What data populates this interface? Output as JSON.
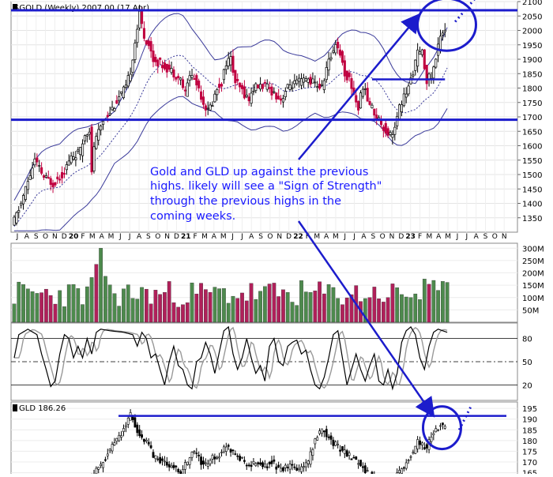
{
  "chart_data": [
    {
      "type": "candlestick",
      "panel": "price",
      "title": "$GOLD (Weekly) 2007.00 (17 Apr)",
      "x_axis_labels": [
        {
          "text": "J",
          "year": "2019"
        },
        {
          "text": "A",
          "year": "2019"
        },
        {
          "text": "S",
          "year": "2019"
        },
        {
          "text": "O",
          "year": "2019"
        },
        {
          "text": "N",
          "year": "2019"
        },
        {
          "text": "D",
          "year": "2019"
        },
        {
          "text": "20",
          "year": "2020"
        },
        {
          "text": "F",
          "year": "2020"
        },
        {
          "text": "M",
          "year": "2020"
        },
        {
          "text": "A",
          "year": "2020"
        },
        {
          "text": "M",
          "year": "2020"
        },
        {
          "text": "J",
          "year": "2020"
        },
        {
          "text": "J",
          "year": "2020"
        },
        {
          "text": "A",
          "year": "2020"
        },
        {
          "text": "S",
          "year": "2020"
        },
        {
          "text": "O",
          "year": "2020"
        },
        {
          "text": "N",
          "year": "2020"
        },
        {
          "text": "D",
          "year": "2020"
        },
        {
          "text": "21",
          "year": "2021"
        },
        {
          "text": "F",
          "year": "2021"
        },
        {
          "text": "M",
          "year": "2021"
        },
        {
          "text": "A",
          "year": "2021"
        },
        {
          "text": "M",
          "year": "2021"
        },
        {
          "text": "J",
          "year": "2021"
        },
        {
          "text": "J",
          "year": "2021"
        },
        {
          "text": "A",
          "year": "2021"
        },
        {
          "text": "S",
          "year": "2021"
        },
        {
          "text": "O",
          "year": "2021"
        },
        {
          "text": "N",
          "year": "2021"
        },
        {
          "text": "D",
          "year": "2021"
        },
        {
          "text": "22",
          "year": "2022"
        },
        {
          "text": "F",
          "year": "2022"
        },
        {
          "text": "M",
          "year": "2022"
        },
        {
          "text": "A",
          "year": "2022"
        },
        {
          "text": "M",
          "year": "2022"
        },
        {
          "text": "J",
          "year": "2022"
        },
        {
          "text": "J",
          "year": "2022"
        },
        {
          "text": "A",
          "year": "2022"
        },
        {
          "text": "S",
          "year": "2022"
        },
        {
          "text": "O",
          "year": "2022"
        },
        {
          "text": "N",
          "year": "2022"
        },
        {
          "text": "D",
          "year": "2022"
        },
        {
          "text": "23",
          "year": "2023"
        },
        {
          "text": "F",
          "year": "2023"
        },
        {
          "text": "M",
          "year": "2023"
        },
        {
          "text": "A",
          "year": "2023"
        },
        {
          "text": "M",
          "year": "2023"
        },
        {
          "text": "J",
          "year": "2023"
        },
        {
          "text": "J",
          "year": "2023"
        },
        {
          "text": "A",
          "year": "2023"
        },
        {
          "text": "S",
          "year": "2023"
        },
        {
          "text": "O",
          "year": "2023"
        },
        {
          "text": "N",
          "year": "2023"
        }
      ],
      "y_ticks": [
        1350,
        1400,
        1450,
        1500,
        1550,
        1600,
        1650,
        1700,
        1750,
        1800,
        1850,
        1900,
        1950,
        2000,
        2050,
        2100
      ],
      "ylim": [
        1300,
        2100
      ],
      "price_path": [
        [
          0,
          1320
        ],
        [
          2,
          1400
        ],
        [
          4,
          1500
        ],
        [
          5,
          1550
        ],
        [
          6,
          1520
        ],
        [
          7,
          1490
        ],
        [
          9,
          1470
        ],
        [
          11,
          1500
        ],
        [
          13,
          1560
        ],
        [
          15,
          1580
        ],
        [
          16,
          1640
        ],
        [
          17,
          1660
        ],
        [
          17.5,
          1500
        ],
        [
          18,
          1600
        ],
        [
          20,
          1690
        ],
        [
          22,
          1730
        ],
        [
          24,
          1780
        ],
        [
          25,
          1800
        ],
        [
          26,
          1860
        ],
        [
          27,
          1960
        ],
        [
          28,
          2060
        ],
        [
          29,
          1980
        ],
        [
          30,
          1950
        ],
        [
          31,
          1900
        ],
        [
          33,
          1880
        ],
        [
          35,
          1860
        ],
        [
          37,
          1830
        ],
        [
          38,
          1780
        ],
        [
          39,
          1850
        ],
        [
          40,
          1830
        ],
        [
          41,
          1800
        ],
        [
          42,
          1750
        ],
        [
          43,
          1720
        ],
        [
          44,
          1750
        ],
        [
          45,
          1800
        ],
        [
          46,
          1820
        ],
        [
          47,
          1890
        ],
        [
          48,
          1900
        ],
        [
          49,
          1820
        ],
        [
          50,
          1800
        ],
        [
          51,
          1780
        ],
        [
          52,
          1760
        ],
        [
          53,
          1800
        ],
        [
          55,
          1810
        ],
        [
          57,
          1790
        ],
        [
          59,
          1760
        ],
        [
          60,
          1790
        ],
        [
          61,
          1810
        ],
        [
          63,
          1820
        ],
        [
          65,
          1830
        ],
        [
          67,
          1810
        ],
        [
          68,
          1800
        ],
        [
          69,
          1870
        ],
        [
          70,
          1910
        ],
        [
          71,
          1960
        ],
        [
          72,
          1920
        ],
        [
          73,
          1850
        ],
        [
          74,
          1830
        ],
        [
          75,
          1780
        ],
        [
          76,
          1730
        ],
        [
          77,
          1810
        ],
        [
          78,
          1760
        ],
        [
          79,
          1730
        ],
        [
          80,
          1700
        ],
        [
          81,
          1680
        ],
        [
          82,
          1650
        ],
        [
          83,
          1640
        ],
        [
          84,
          1660
        ],
        [
          85,
          1730
        ],
        [
          86,
          1770
        ],
        [
          87,
          1800
        ],
        [
          88,
          1860
        ],
        [
          89,
          1920
        ],
        [
          90,
          1920
        ],
        [
          91,
          1830
        ],
        [
          92,
          1840
        ],
        [
          93,
          1900
        ],
        [
          94,
          1990
        ],
        [
          95,
          2007
        ]
      ],
      "horizontal_lines": [
        2070,
        1690
      ],
      "short_line": {
        "value": 1830
      },
      "annotation": "Gold and GLD up against the previous highs.  likely will see a \"Sign of Strength\" through the previous highs in the coming weeks."
    },
    {
      "type": "bar",
      "panel": "volume",
      "y_ticks": [
        "50M",
        "100M",
        "150M",
        "200M",
        "250M",
        "300M"
      ],
      "ylim": [
        0,
        320
      ],
      "unit": "M"
    },
    {
      "type": "line",
      "panel": "stochastic",
      "y_ticks": [
        20,
        50,
        80
      ],
      "ylim": [
        0,
        100
      ],
      "k_path": [
        [
          0,
          55
        ],
        [
          1,
          85
        ],
        [
          3,
          92
        ],
        [
          5,
          85
        ],
        [
          6,
          60
        ],
        [
          7,
          40
        ],
        [
          8,
          18
        ],
        [
          9,
          25
        ],
        [
          10,
          60
        ],
        [
          11,
          85
        ],
        [
          12,
          80
        ],
        [
          13,
          55
        ],
        [
          14,
          70
        ],
        [
          15,
          55
        ],
        [
          16,
          80
        ],
        [
          17,
          60
        ],
        [
          18,
          88
        ],
        [
          19,
          92
        ],
        [
          21,
          90
        ],
        [
          24,
          88
        ],
        [
          26,
          85
        ],
        [
          27,
          70
        ],
        [
          28,
          88
        ],
        [
          29,
          80
        ],
        [
          30,
          55
        ],
        [
          31,
          60
        ],
        [
          32,
          40
        ],
        [
          33,
          20
        ],
        [
          34,
          50
        ],
        [
          35,
          70
        ],
        [
          36,
          45
        ],
        [
          37,
          40
        ],
        [
          38,
          20
        ],
        [
          39,
          15
        ],
        [
          40,
          50
        ],
        [
          41,
          55
        ],
        [
          42,
          75
        ],
        [
          43,
          60
        ],
        [
          44,
          35
        ],
        [
          46,
          90
        ],
        [
          47,
          95
        ],
        [
          48,
          60
        ],
        [
          49,
          40
        ],
        [
          50,
          55
        ],
        [
          51,
          80
        ],
        [
          52,
          55
        ],
        [
          53,
          35
        ],
        [
          54,
          45
        ],
        [
          55,
          25
        ],
        [
          56,
          70
        ],
        [
          57,
          80
        ],
        [
          58,
          50
        ],
        [
          59,
          45
        ],
        [
          60,
          70
        ],
        [
          61,
          75
        ],
        [
          62,
          78
        ],
        [
          63,
          60
        ],
        [
          64,
          65
        ],
        [
          65,
          40
        ],
        [
          66,
          20
        ],
        [
          67,
          15
        ],
        [
          68,
          30
        ],
        [
          69,
          55
        ],
        [
          70,
          85
        ],
        [
          71,
          90
        ],
        [
          72,
          55
        ],
        [
          73,
          20
        ],
        [
          74,
          40
        ],
        [
          75,
          60
        ],
        [
          76,
          40
        ],
        [
          77,
          25
        ],
        [
          78,
          45
        ],
        [
          79,
          60
        ],
        [
          80,
          25
        ],
        [
          81,
          20
        ],
        [
          82,
          40
        ],
        [
          83,
          15
        ],
        [
          84,
          35
        ],
        [
          85,
          75
        ],
        [
          86,
          90
        ],
        [
          87,
          95
        ],
        [
          88,
          85
        ],
        [
          89,
          55
        ],
        [
          90,
          40
        ],
        [
          91,
          70
        ],
        [
          92,
          88
        ],
        [
          93,
          92
        ],
        [
          94,
          90
        ],
        [
          95,
          88
        ]
      ]
    },
    {
      "type": "candlestick",
      "panel": "gld",
      "title": "GLD 186.26",
      "y_ticks": [
        165,
        170,
        175,
        180,
        185,
        190,
        195
      ],
      "ylim": [
        163,
        198
      ],
      "price_path": [
        [
          15,
          158
        ],
        [
          18,
          165
        ],
        [
          20,
          170
        ],
        [
          22,
          178
        ],
        [
          24,
          183
        ],
        [
          25,
          188
        ],
        [
          26,
          192
        ],
        [
          27,
          187
        ],
        [
          28,
          182
        ],
        [
          30,
          178
        ],
        [
          31,
          173
        ],
        [
          33,
          170
        ],
        [
          35,
          168
        ],
        [
          37,
          165
        ],
        [
          39,
          172
        ],
        [
          40,
          175
        ],
        [
          42,
          168
        ],
        [
          44,
          172
        ],
        [
          46,
          174
        ],
        [
          47,
          178
        ],
        [
          48,
          176
        ],
        [
          50,
          172
        ],
        [
          52,
          168
        ],
        [
          54,
          170
        ],
        [
          55,
          167
        ],
        [
          57,
          170
        ],
        [
          59,
          166
        ],
        [
          61,
          168
        ],
        [
          63,
          166
        ],
        [
          65,
          170
        ],
        [
          66,
          177
        ],
        [
          67,
          182
        ],
        [
          68,
          186
        ],
        [
          69,
          183
        ],
        [
          70,
          180
        ],
        [
          72,
          176
        ],
        [
          74,
          173
        ],
        [
          76,
          170
        ],
        [
          78,
          165
        ],
        [
          80,
          161
        ],
        [
          82,
          158
        ],
        [
          84,
          162
        ],
        [
          86,
          168
        ],
        [
          88,
          175
        ],
        [
          89,
          180
        ],
        [
          90,
          178
        ],
        [
          91,
          176
        ],
        [
          92,
          182
        ],
        [
          93,
          185
        ],
        [
          94,
          188
        ],
        [
          95,
          186
        ]
      ],
      "horizontal_line": {
        "value": 191.5
      }
    }
  ],
  "style": {
    "annotation_color": "#1a1aff",
    "line_color": "#1c1ccc",
    "up_color": "#000000",
    "down_color": "#c00040",
    "vol_up": "#4d8a4d",
    "vol_down": "#b0205a",
    "band_color": "#3a3a9a"
  }
}
